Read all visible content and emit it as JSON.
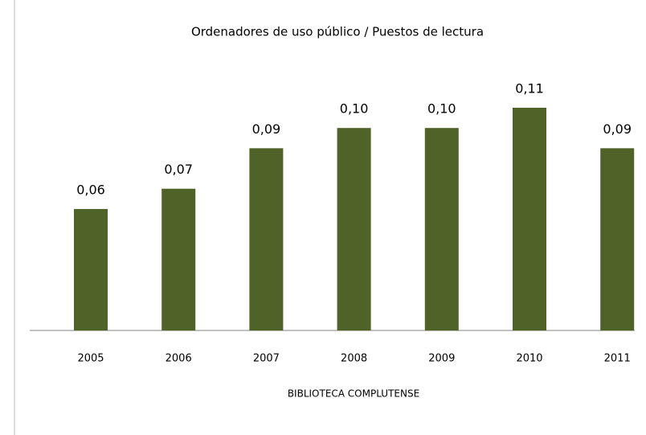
{
  "chart_data": {
    "type": "bar",
    "title": "Ordenadores de uso público / Puestos de lectura",
    "x_label": "BIBLIOTECA COMPLUTENSE",
    "categories": [
      "2005",
      "2006",
      "2007",
      "2008",
      "2009",
      "2010",
      "2011"
    ],
    "values": [
      0.06,
      0.07,
      0.09,
      0.1,
      0.1,
      0.11,
      0.09
    ],
    "value_labels": [
      "0,06",
      "0,07",
      "0,09",
      "0,10",
      "0,10",
      "0,11",
      "0,09"
    ],
    "color": "#4f6228",
    "grid": false
  }
}
